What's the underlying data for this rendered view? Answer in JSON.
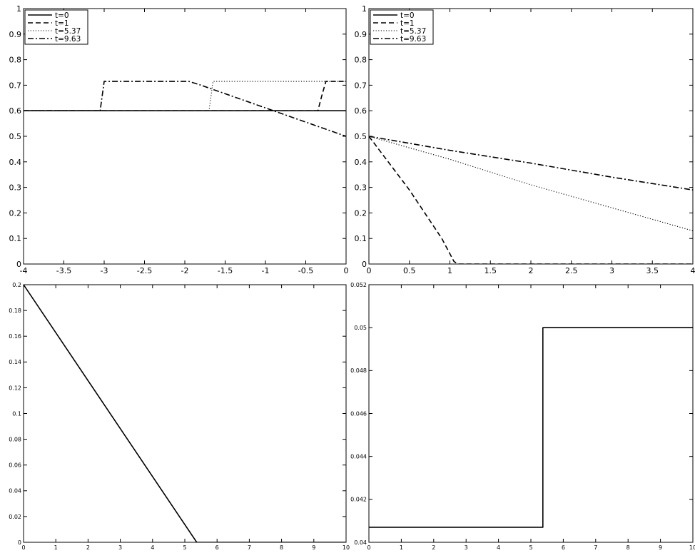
{
  "chart_data": [
    {
      "type": "line",
      "xlim": [
        -4,
        0
      ],
      "ylim": [
        0,
        1
      ],
      "xticks": [
        "-4",
        "-3.5",
        "-3",
        "-2.5",
        "-2",
        "-1.5",
        "-1",
        "-0.5",
        "0"
      ],
      "yticks": [
        "0",
        "0.1",
        "0.2",
        "0.3",
        "0.4",
        "0.5",
        "0.6",
        "0.7",
        "0.8",
        "0.9",
        "1"
      ],
      "grid": false,
      "legend": "top-left",
      "series": [
        {
          "name": "t=0",
          "dash": "solid",
          "x": [
            -4,
            0
          ],
          "y": [
            0.6,
            0.6
          ]
        },
        {
          "name": "t=1",
          "dash": "dashed",
          "x": [
            -4,
            -0.35,
            -0.3,
            -0.25,
            0
          ],
          "y": [
            0.6,
            0.6,
            0.66,
            0.715,
            0.715
          ]
        },
        {
          "name": "t=5.37",
          "dash": "dotted",
          "x": [
            -4,
            -1.7,
            -1.65,
            0
          ],
          "y": [
            0.6,
            0.6,
            0.715,
            0.715
          ]
        },
        {
          "name": "t=9.63",
          "dash": "dashdot",
          "x": [
            -4,
            -3.05,
            -3.0,
            -1.95,
            -1.8,
            0
          ],
          "y": [
            0.6,
            0.6,
            0.715,
            0.715,
            0.7,
            0.5
          ]
        }
      ]
    },
    {
      "type": "line",
      "xlim": [
        0,
        4
      ],
      "ylim": [
        0,
        1
      ],
      "xticks": [
        "0",
        "0.5",
        "1",
        "1.5",
        "2",
        "2.5",
        "3",
        "3.5",
        "4"
      ],
      "yticks": [
        "0",
        "0.1",
        "0.2",
        "0.3",
        "0.4",
        "0.5",
        "0.6",
        "0.7",
        "0.8",
        "0.9",
        "1"
      ],
      "grid": false,
      "legend": "top-left",
      "series": [
        {
          "name": "t=0",
          "dash": "solid",
          "x": [
            0,
            0
          ],
          "y": [
            0.5,
            0.5
          ]
        },
        {
          "name": "t=1",
          "dash": "dashed",
          "x": [
            0,
            0.5,
            0.9,
            1.05,
            1.1,
            4
          ],
          "y": [
            0.5,
            0.29,
            0.1,
            0.01,
            0,
            0
          ]
        },
        {
          "name": "t=5.37",
          "dash": "dotted",
          "x": [
            0,
            1,
            2,
            3,
            4
          ],
          "y": [
            0.5,
            0.41,
            0.31,
            0.22,
            0.13
          ]
        },
        {
          "name": "t=9.63",
          "dash": "dashdot",
          "x": [
            0,
            1,
            2,
            3,
            4
          ],
          "y": [
            0.5,
            0.445,
            0.395,
            0.34,
            0.29
          ]
        }
      ]
    },
    {
      "type": "line",
      "xlim": [
        0,
        10
      ],
      "ylim": [
        0,
        0.2
      ],
      "xticks": [
        "0",
        "1",
        "2",
        "3",
        "4",
        "5",
        "6",
        "7",
        "8",
        "9",
        "10"
      ],
      "yticks": [
        "0",
        "0.02",
        "0.04",
        "0.06",
        "0.08",
        "0.1",
        "0.12",
        "0.14",
        "0.16",
        "0.18",
        "0.2"
      ],
      "grid": false,
      "series": [
        {
          "dash": "solid",
          "x": [
            0,
            5.37,
            10
          ],
          "y": [
            0.2,
            0,
            0
          ]
        }
      ]
    },
    {
      "type": "line",
      "xlim": [
        0,
        10
      ],
      "ylim": [
        0.04,
        0.052
      ],
      "xticks": [
        "0",
        "1",
        "2",
        "3",
        "4",
        "5",
        "6",
        "7",
        "8",
        "9",
        "10"
      ],
      "yticks": [
        "0.04",
        "0.042",
        "0.044",
        "0.046",
        "0.048",
        "0.05",
        "0.052"
      ],
      "grid": false,
      "series": [
        {
          "dash": "solid",
          "x": [
            0,
            5.37,
            5.37,
            10
          ],
          "y": [
            0.0407,
            0.0407,
            0.05,
            0.05
          ]
        }
      ]
    }
  ]
}
